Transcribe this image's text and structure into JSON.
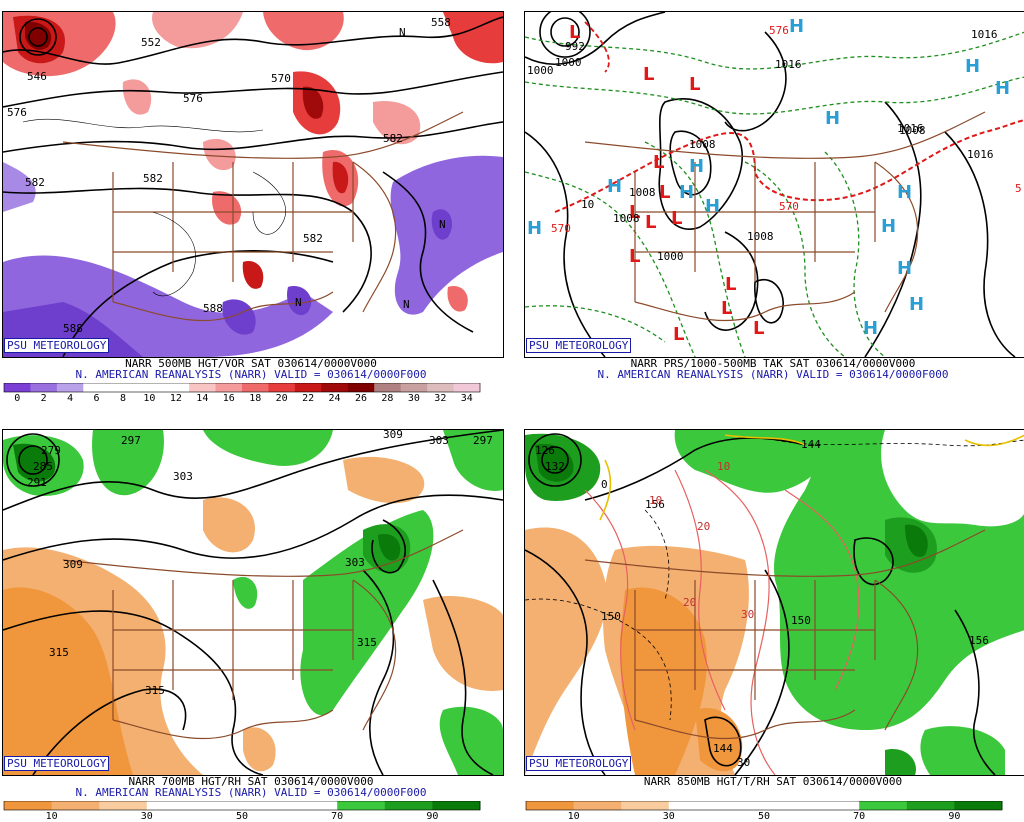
{
  "brand": "PSU METEOROLOGY",
  "panels": [
    {
      "id": "vor",
      "caption1": "NARR 500MB HGT/VOR SAT 030614/0000V000",
      "caption2": "N. AMERICAN REANALYSIS (NARR) VALID = 030614/0000F000",
      "colorbar": {
        "colors": [
          "#7b3fd6",
          "#9a70e0",
          "#b9a2ea",
          "#ffffff",
          "#ffffff",
          "#ffffff",
          "#ffffff",
          "#f8c4c4",
          "#f49b9b",
          "#ef6b6b",
          "#e63c3c",
          "#c81818",
          "#a00a0a",
          "#800000",
          "#b08080",
          "#c8a0a0",
          "#dcbcbc",
          "#f0c8d8"
        ],
        "ticks": [
          "0",
          "2",
          "4",
          "6",
          "8",
          "10",
          "12",
          "14",
          "16",
          "18",
          "20",
          "22",
          "24",
          "26",
          "28",
          "30",
          "32",
          "34"
        ]
      },
      "labels": [
        "546",
        "552",
        "558",
        "570",
        "576",
        "582",
        "576",
        "582",
        "582",
        "582",
        "588",
        "588",
        "N",
        "N",
        "N",
        "N"
      ]
    },
    {
      "id": "prs",
      "caption1": "NARR PRS/1000-500MB TAK SAT 030614/0000V000",
      "caption2": "N. AMERICAN REANALYSIS (NARR) VALID = 030614/0000F000",
      "labels": [
        "992",
        "1000",
        "1000",
        "1008",
        "1008",
        "1008",
        "1008",
        "1000",
        "1016",
        "1016",
        "1016",
        "1016",
        "1008",
        "570",
        "570",
        "576",
        "5",
        "10"
      ],
      "highs": 14,
      "lows": 13
    },
    {
      "id": "rh700",
      "caption1": "NARR 700MB HGT/RH SAT 030614/0000V000",
      "caption2": "N. AMERICAN REANALYSIS (NARR) VALID = 030614/0000F000",
      "colorbar": {
        "colors": [
          "#f0963c",
          "#f4b070",
          "#f8cc9e",
          "#ffffff",
          "#ffffff",
          "#ffffff",
          "#ffffff",
          "#3cc83c",
          "#1e9e1e",
          "#0a7a0a"
        ],
        "ticks": [
          "10",
          "30",
          "50",
          "70",
          "90"
        ]
      },
      "labels": [
        "279",
        "285",
        "291",
        "297",
        "303",
        "303",
        "303",
        "309",
        "309",
        "315",
        "315",
        "315",
        "297"
      ]
    },
    {
      "id": "rh850",
      "caption1": "NARR 850MB HGT/T/RH SAT 030614/0000V000",
      "caption2": "",
      "colorbar": {
        "colors": [
          "#f0963c",
          "#f4b070",
          "#f8cc9e",
          "#ffffff",
          "#ffffff",
          "#ffffff",
          "#ffffff",
          "#3cc83c",
          "#1e9e1e",
          "#0a7a0a"
        ],
        "ticks": [
          "10",
          "30",
          "50",
          "70",
          "90"
        ]
      },
      "labels": [
        "126",
        "132",
        "144",
        "150",
        "150",
        "156",
        "156",
        "0",
        "10",
        "10",
        "20",
        "20",
        "30",
        "30",
        "144"
      ]
    }
  ]
}
